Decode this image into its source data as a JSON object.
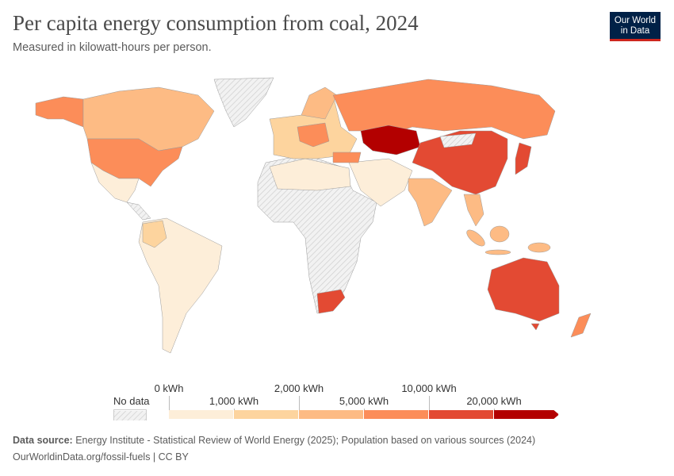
{
  "header": {
    "title": "Per capita energy consumption from coal, 2024",
    "subtitle": "Measured in kilowatt-hours per person.",
    "logo_text": "Our World in Data"
  },
  "legend": {
    "no_data_label": "No data",
    "no_data_color": "#e6e6e6",
    "top_labels": [
      "0 kWh",
      "2,000 kWh",
      "10,000 kWh"
    ],
    "bottom_labels": [
      "1,000 kWh",
      "5,000 kWh",
      "20,000 kWh"
    ],
    "bins": [
      {
        "range": "0–1,000 kWh",
        "color": "#fdeed9"
      },
      {
        "range": "1,000–2,000 kWh",
        "color": "#fdd49e"
      },
      {
        "range": "2,000–5,000 kWh",
        "color": "#fdbb84"
      },
      {
        "range": "5,000–10,000 kWh",
        "color": "#fc8d59"
      },
      {
        "range": "10,000–20,000 kWh",
        "color": "#e34a33"
      },
      {
        "range": ">20,000 kWh",
        "color": "#b30000"
      }
    ]
  },
  "map": {
    "regions": {
      "greenland": "nodata",
      "alaska": 3,
      "canada": 2,
      "usa": 3,
      "mexico": 0,
      "central-america": "nodata",
      "south-america": 0,
      "colombia": 1,
      "africa": "nodata",
      "north-africa": 0,
      "south-africa": 4,
      "europe": 1,
      "central-europe": 3,
      "scandinavia": 2,
      "russia": 3,
      "kazakhstan": 5,
      "middle-east": 0,
      "turkey": 3,
      "china": 4,
      "mongolia": "nodata",
      "india": 2,
      "southeast-asia": 2,
      "japan": 4,
      "indonesia": 2,
      "australia": 4,
      "new-zealand": 3
    }
  },
  "footer": {
    "source_label": "Data source:",
    "source_text": " Energy Institute - Statistical Review of World Energy (2025); Population based on various sources (2024)",
    "url_license": "OurWorldinData.org/fossil-fuels | CC BY"
  }
}
